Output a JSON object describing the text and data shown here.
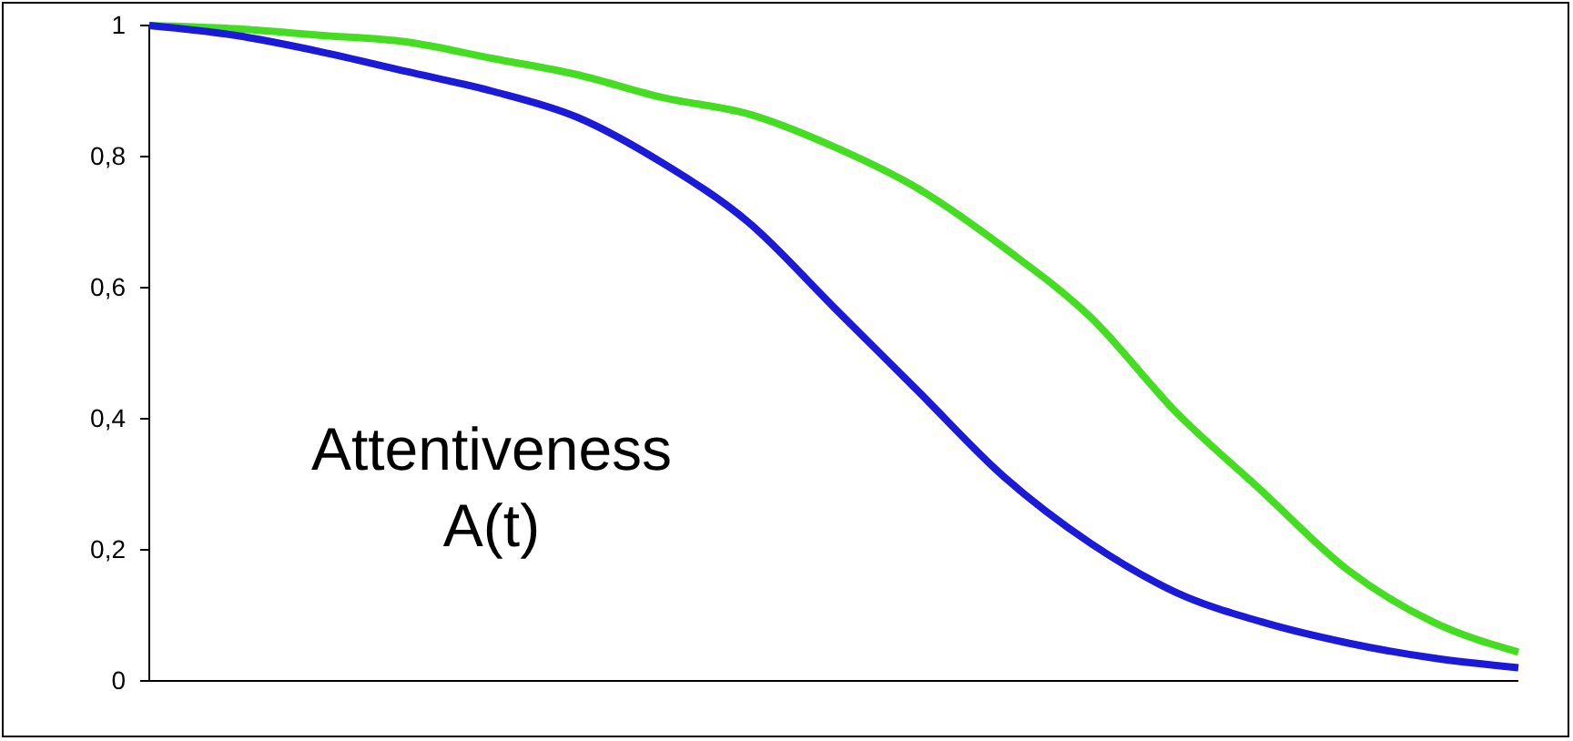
{
  "chart_data": {
    "type": "line",
    "categories": [
      null,
      null,
      null,
      null,
      null,
      null,
      null,
      null,
      null,
      null,
      null,
      null,
      null,
      null,
      null,
      null,
      null
    ],
    "series": [
      {
        "color": "#44dd22",
        "values": [
          1,
          0.995,
          0.985,
          0.975,
          0.95,
          0.925,
          0.89,
          0.865,
          0.815,
          0.75,
          0.66,
          0.555,
          0.41,
          0.29,
          0.17,
          0.09,
          0.044
        ]
      },
      {
        "color": "#1a1ad8",
        "values": [
          1,
          0.985,
          0.96,
          0.93,
          0.9,
          0.86,
          0.79,
          0.7,
          0.57,
          0.44,
          0.31,
          0.21,
          0.135,
          0.09,
          0.058,
          0.035,
          0.02
        ]
      }
    ],
    "ylim": [
      0,
      1
    ],
    "yticks": [
      {
        "value": 0,
        "label": "0"
      },
      {
        "value": 0.2,
        "label": "0,2"
      },
      {
        "value": 0.4,
        "label": "0,4"
      },
      {
        "value": 0.6,
        "label": "0,6"
      },
      {
        "value": 0.8,
        "label": "0,8"
      },
      {
        "value": 1,
        "label": "1"
      }
    ],
    "annotations": [
      "Attentiveness",
      "A(t)"
    ],
    "grid": false,
    "legend": false,
    "marker": "none",
    "line_style": "solid"
  }
}
